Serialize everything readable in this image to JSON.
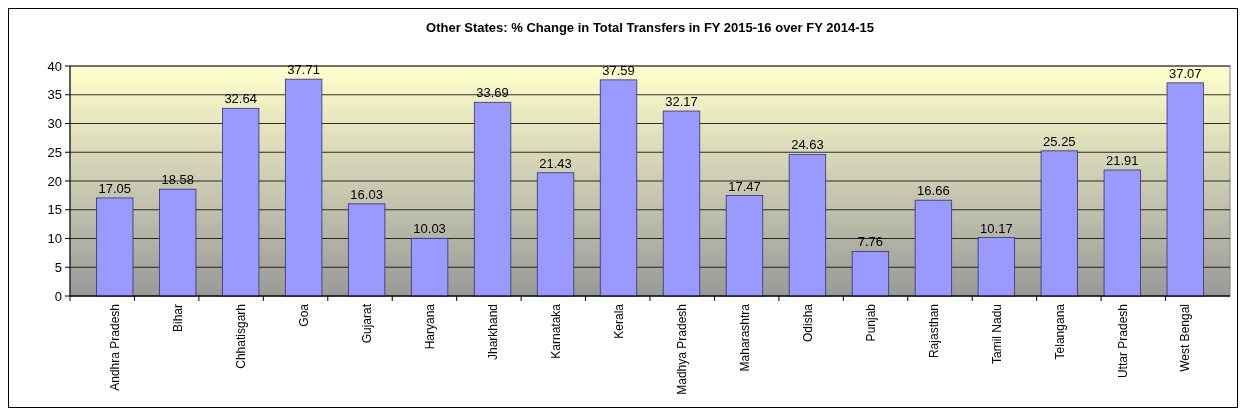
{
  "chart_data": {
    "type": "bar",
    "title": "Other States: % Change in Total Transfers in FY 2015-16 over FY 2014-15",
    "categories": [
      "Andhra Pradesh",
      "Bihar",
      "Chhatisgarh",
      "Goa",
      "Gujarat",
      "Haryana",
      "Jharkhand",
      "Karnataka",
      "Kerala",
      "Madhya Pradesh",
      "Maharashtra",
      "Odisha",
      "Punjab",
      "Rajasthan",
      "Tamil Nadu",
      "Telangana",
      "Uttar Pradesh",
      "West Bengal"
    ],
    "values": [
      17.05,
      18.58,
      32.64,
      37.71,
      16.03,
      10.03,
      33.69,
      21.43,
      37.59,
      32.17,
      17.47,
      24.63,
      7.76,
      16.66,
      10.17,
      25.25,
      21.91,
      37.07
    ],
    "color": "#9999ff",
    "ylim": [
      0,
      40
    ],
    "yticks": [
      0,
      5,
      10,
      15,
      20,
      25,
      30,
      35,
      40
    ],
    "grid": "y",
    "data_labels": true
  }
}
